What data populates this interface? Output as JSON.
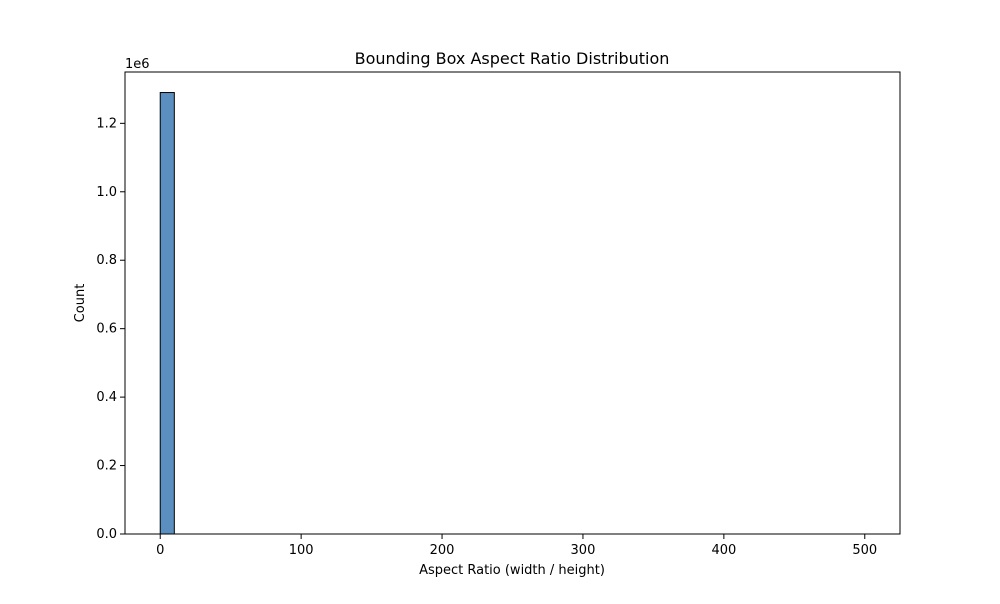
{
  "chart_data": {
    "type": "bar",
    "title": "Bounding Box Aspect Ratio Distribution",
    "xlabel": "Aspect Ratio (width / height)",
    "ylabel": "Count",
    "y_offset_label": "1e6",
    "xlim": [
      -25,
      525
    ],
    "ylim": [
      0,
      1350000
    ],
    "x_ticks": [
      0,
      100,
      200,
      300,
      400,
      500
    ],
    "x_tick_labels": [
      "0",
      "100",
      "200",
      "300",
      "400",
      "500"
    ],
    "y_ticks": [
      0,
      200000,
      400000,
      600000,
      800000,
      1000000,
      1200000
    ],
    "y_tick_labels": [
      "0.0",
      "0.2",
      "0.4",
      "0.6",
      "0.8",
      "1.0",
      "1.2"
    ],
    "bin_width": 10,
    "bins": [
      {
        "x0": 0,
        "x1": 10,
        "count": 1290000
      }
    ],
    "grid": false,
    "legend": "none",
    "colors": {
      "bar_fill": "#5b8fbf",
      "bar_edge": "#000000",
      "axis": "#000000"
    }
  }
}
